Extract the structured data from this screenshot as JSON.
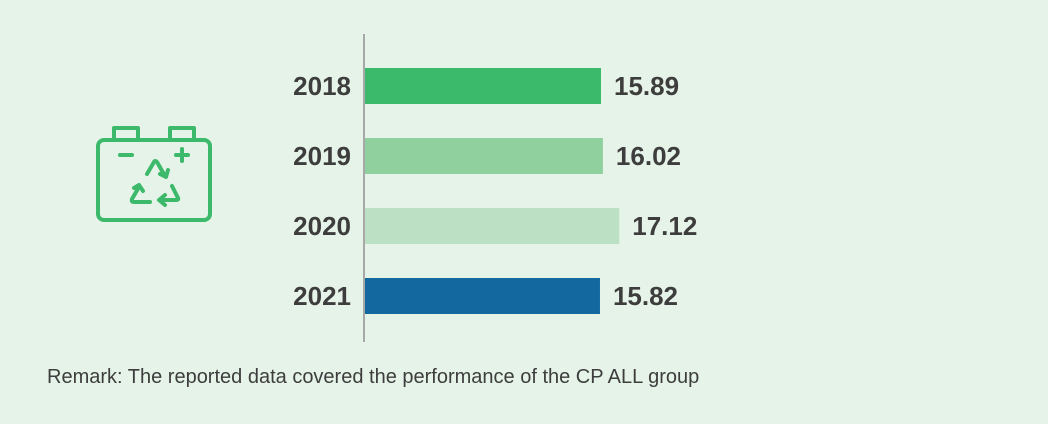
{
  "colors": {
    "background": "#e6f3e8",
    "icon": "#3cb96a",
    "axis": "#a8a8a8",
    "text": "#3d3d3d"
  },
  "icon": {
    "name": "battery-recycle-icon"
  },
  "chart_data": {
    "type": "bar",
    "orientation": "horizontal",
    "categories": [
      "2018",
      "2019",
      "2020",
      "2021"
    ],
    "values": [
      15.89,
      16.02,
      17.12,
      15.82
    ],
    "value_labels": [
      "15.89",
      "16.02",
      "17.12",
      "15.82"
    ],
    "bar_colors": [
      "#3cba6b",
      "#90d09e",
      "#bbe0c4",
      "#12689f"
    ],
    "title": "",
    "xlabel": "",
    "ylabel": "",
    "grid": false,
    "legend": "none"
  },
  "remark": "Remark: The reported data covered the performance of the CP ALL group"
}
